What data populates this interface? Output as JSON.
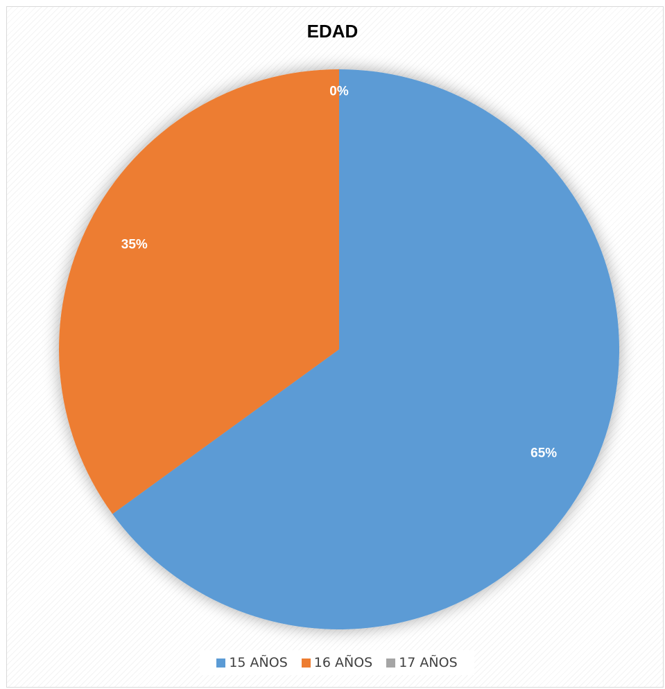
{
  "chart_data": {
    "type": "pie",
    "title": "EDAD",
    "categories": [
      "15 AÑOS",
      "16 AÑOS",
      "17 AÑOS"
    ],
    "values": [
      65,
      35,
      0
    ],
    "value_labels": [
      "65%",
      "35%",
      "0%"
    ],
    "colors": [
      "#5b9bd5",
      "#ed7d31",
      "#a5a5a5"
    ],
    "legend_position": "bottom"
  }
}
